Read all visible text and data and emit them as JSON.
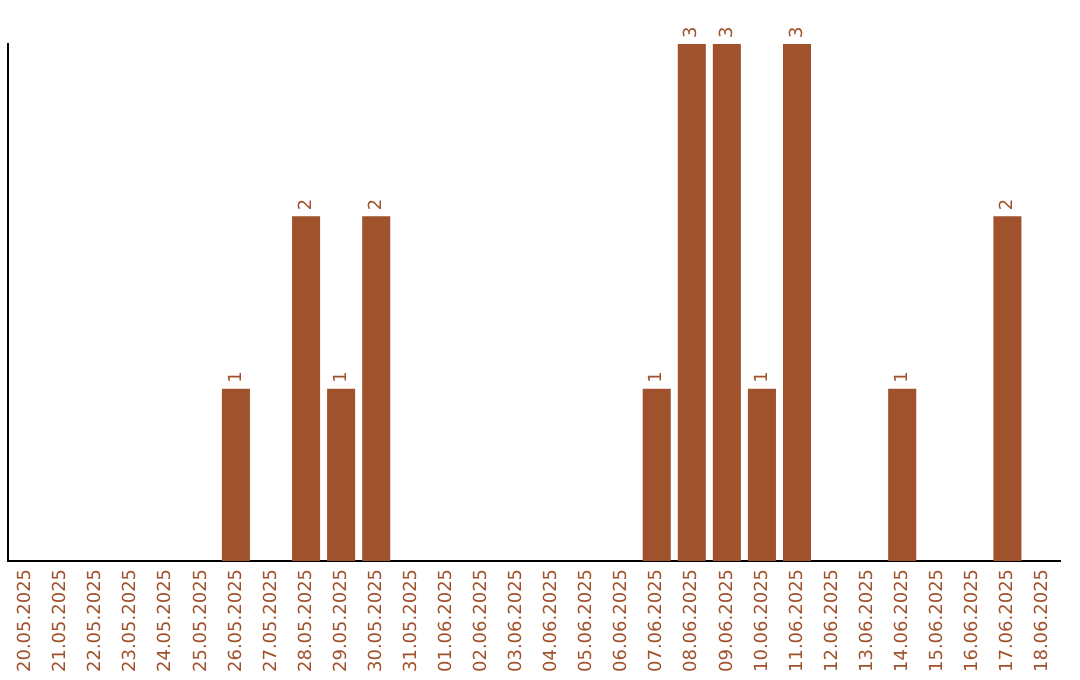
{
  "chart_data": {
    "type": "bar",
    "categories": [
      "20.05.2025",
      "21.05.2025",
      "22.05.2025",
      "23.05.2025",
      "24.05.2025",
      "25.05.2025",
      "26.05.2025",
      "27.05.2025",
      "28.05.2025",
      "29.05.2025",
      "30.05.2025",
      "31.05.2025",
      "01.06.2025",
      "02.06.2025",
      "03.06.2025",
      "04.06.2025",
      "05.06.2025",
      "06.06.2025",
      "07.06.2025",
      "08.06.2025",
      "09.06.2025",
      "10.06.2025",
      "11.06.2025",
      "12.06.2025",
      "13.06.2025",
      "14.06.2025",
      "15.06.2025",
      "16.06.2025",
      "17.06.2025",
      "18.06.2025"
    ],
    "values": [
      0,
      0,
      0,
      0,
      0,
      0,
      1,
      0,
      2,
      1,
      2,
      0,
      0,
      0,
      0,
      0,
      0,
      0,
      1,
      3,
      3,
      1,
      3,
      0,
      0,
      1,
      0,
      0,
      2,
      0
    ],
    "value_labels": [
      null,
      null,
      null,
      null,
      null,
      null,
      "1",
      null,
      "2",
      "1",
      "2",
      null,
      null,
      null,
      null,
      null,
      null,
      null,
      "1",
      "3",
      "3",
      "1",
      "3",
      null,
      null,
      "1",
      null,
      null,
      "2",
      null
    ],
    "color": "#a0522d",
    "grid": false,
    "legend": false,
    "tick_labels": "x"
  }
}
